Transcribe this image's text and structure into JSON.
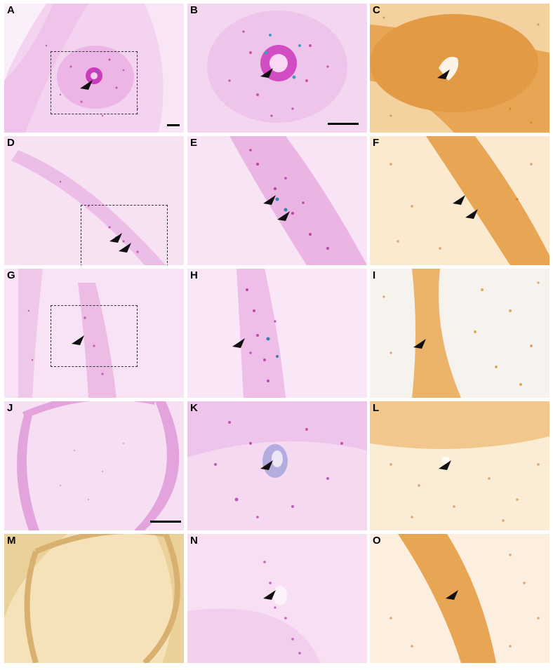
{
  "panels": [
    {
      "id": "A",
      "label": "A",
      "stain": "pink"
    },
    {
      "id": "B",
      "label": "B",
      "stain": "pink"
    },
    {
      "id": "C",
      "label": "C",
      "stain": "brown"
    },
    {
      "id": "D",
      "label": "D",
      "stain": "pink"
    },
    {
      "id": "E",
      "label": "E",
      "stain": "pink"
    },
    {
      "id": "F",
      "label": "F",
      "stain": "brown"
    },
    {
      "id": "G",
      "label": "G",
      "stain": "pink"
    },
    {
      "id": "H",
      "label": "H",
      "stain": "pink"
    },
    {
      "id": "I",
      "label": "I",
      "stain": "brown"
    },
    {
      "id": "J",
      "label": "J",
      "stain": "pink"
    },
    {
      "id": "K",
      "label": "K",
      "stain": "pink"
    },
    {
      "id": "L",
      "label": "L",
      "stain": "brown"
    },
    {
      "id": "M",
      "label": "M",
      "stain": "brown"
    },
    {
      "id": "N",
      "label": "N",
      "stain": "pink"
    },
    {
      "id": "O",
      "label": "O",
      "stain": "brown"
    }
  ],
  "colors": {
    "pink_bg": "#f6d8f1",
    "pink_dense": "#d774cf",
    "pink_dot": "#b0309e",
    "blue_dot": "#3a7fb0",
    "brown_bg": "#f4d6a8",
    "brown_dense": "#e3a04b",
    "brown_dot": "#c0721f",
    "arrow": "#111111"
  },
  "icons": {
    "arrowhead": "black-triangle-arrowhead",
    "inset_box": "dashed-rectangle",
    "scale_bar": "black-bar"
  }
}
